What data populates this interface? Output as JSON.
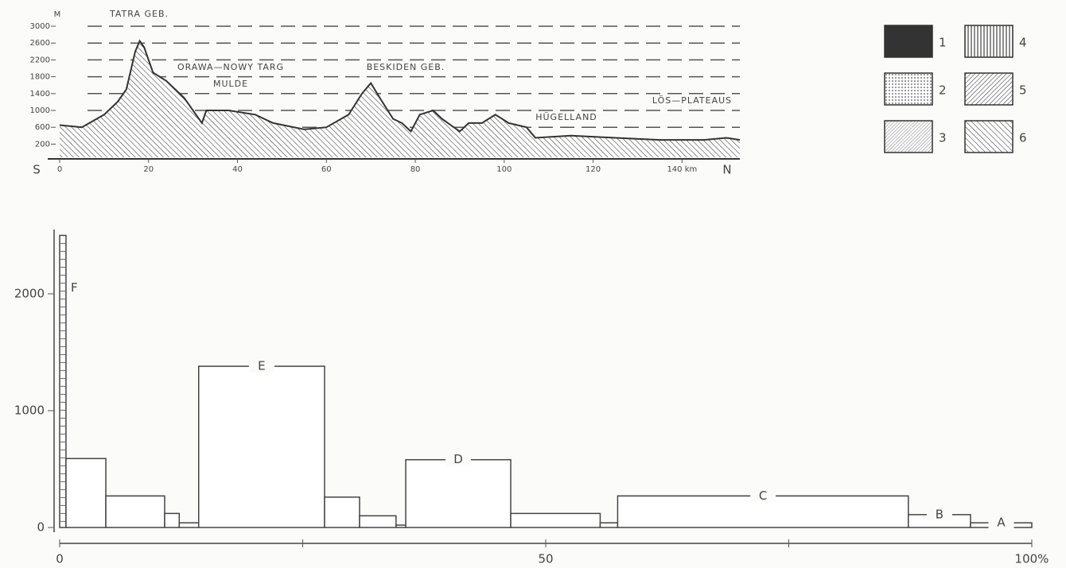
{
  "chart_data": [
    {
      "type": "area",
      "y_label": "M",
      "x_start_label": "S",
      "x_end_label": "N",
      "x": [
        0,
        5,
        10,
        13,
        15,
        17,
        18,
        19,
        21,
        24,
        28,
        32,
        33,
        38,
        44,
        48,
        55,
        60,
        65,
        68,
        70,
        72,
        75,
        77,
        79,
        81,
        84,
        86,
        88,
        90,
        92,
        95,
        98,
        101,
        105,
        107,
        115,
        125,
        135,
        145,
        150,
        153
      ],
      "values": [
        650,
        600,
        900,
        1200,
        1500,
        2400,
        2650,
        2500,
        1900,
        1700,
        1300,
        700,
        1000,
        1000,
        900,
        700,
        550,
        600,
        900,
        1400,
        1650,
        1300,
        800,
        700,
        500,
        900,
        1000,
        800,
        650,
        500,
        700,
        700,
        900,
        700,
        600,
        350,
        400,
        350,
        300,
        300,
        350,
        300
      ],
      "xlim": [
        0,
        153
      ],
      "ylim": [
        0,
        3000
      ],
      "xticks": [
        0,
        20,
        40,
        60,
        80,
        100,
        120,
        {
          "value": 140,
          "label": "140 km"
        }
      ],
      "yticks": [
        200,
        600,
        1000,
        1400,
        1800,
        2200,
        2600,
        3000
      ],
      "grid": true,
      "annotations": [
        "TATRA GEB.",
        "ORAWA—NOWY TARG",
        "MULDE",
        "BESKIDEN GEB.",
        "HÜGELLAND",
        "LÖS—PLATEAUS"
      ],
      "legend": [
        "1",
        "2",
        "3",
        "4",
        "5",
        "6"
      ]
    },
    {
      "type": "histogram",
      "bins": [
        0,
        0.65,
        4.75,
        10.8,
        12.3,
        14.3,
        27.25,
        30.85,
        34.6,
        35.6,
        46.4,
        55.6,
        57.4,
        87.3,
        93.7,
        100
      ],
      "values": [
        2500,
        590,
        270,
        120,
        40,
        1380,
        260,
        100,
        20,
        580,
        120,
        40,
        270,
        110,
        40
      ],
      "bar_labels": [
        "F",
        null,
        null,
        null,
        null,
        "E",
        null,
        null,
        null,
        "D",
        null,
        null,
        "C",
        "B",
        "A"
      ],
      "xlim": [
        0,
        100
      ],
      "ylim": [
        0,
        2550
      ],
      "xticks": [
        0,
        50,
        {
          "value": 100,
          "label": "100%"
        }
      ],
      "xminor_ticks": [
        25,
        75
      ],
      "yticks": [
        0,
        1000,
        2000
      ]
    }
  ]
}
